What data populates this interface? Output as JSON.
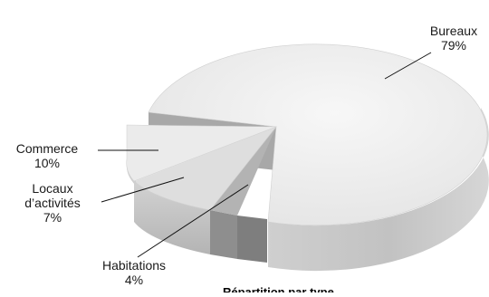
{
  "chart_data": {
    "type": "pie",
    "style": "3d-exploded",
    "categories": [
      "Bureaux",
      "Commerce",
      "Locaux d’activités",
      "Habitations"
    ],
    "values": [
      79,
      10,
      7,
      4
    ],
    "value_labels": [
      "79%",
      "10%",
      "7%",
      "4%"
    ],
    "colors": [
      "#ececec",
      "#e3e3e3",
      "#d9d9d9",
      "#b9b9b9"
    ],
    "legend": "none",
    "bottom_caption_partial": "Répartition par type"
  }
}
